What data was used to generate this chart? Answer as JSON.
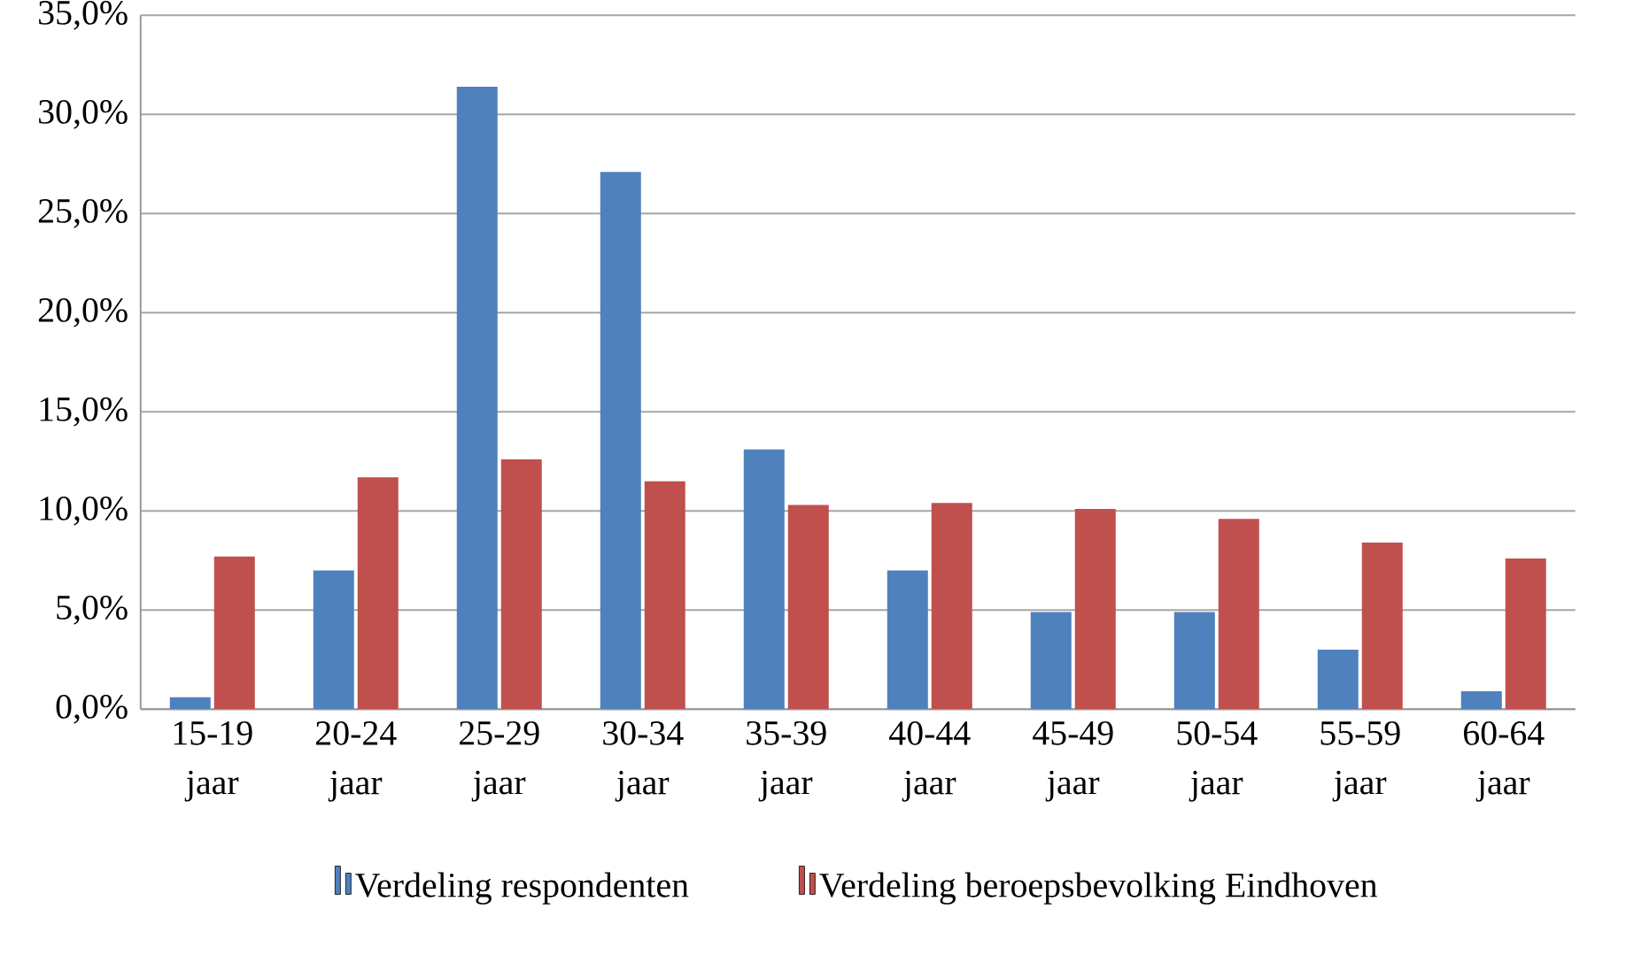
{
  "chart_data": {
    "type": "bar",
    "categories": [
      "15-19 jaar",
      "20-24 jaar",
      "25-29 jaar",
      "30-34 jaar",
      "35-39 jaar",
      "40-44 jaar",
      "45-49 jaar",
      "50-54 jaar",
      "55-59 jaar",
      "60-64 jaar"
    ],
    "series": [
      {
        "name": "Verdeling respondenten",
        "color": "#4f81bd",
        "values": [
          0.6,
          7.0,
          31.4,
          27.1,
          13.1,
          7.0,
          4.9,
          4.9,
          3.0,
          0.9
        ]
      },
      {
        "name": "Verdeling beroepsbevolking Eindhoven",
        "color": "#c0504d",
        "values": [
          7.7,
          11.7,
          12.6,
          11.5,
          10.3,
          10.4,
          10.1,
          9.6,
          8.4,
          7.6
        ]
      }
    ],
    "ylim": [
      0,
      35
    ],
    "yticks": [
      {
        "value": 0,
        "label": "0,0%"
      },
      {
        "value": 5,
        "label": "5,0%"
      },
      {
        "value": 10,
        "label": "10,0%"
      },
      {
        "value": 15,
        "label": "15,0%"
      },
      {
        "value": 20,
        "label": "20,0%"
      },
      {
        "value": 25,
        "label": "25,0%"
      },
      {
        "value": 30,
        "label": "30,0%"
      },
      {
        "value": 35,
        "label": "35,0%"
      }
    ],
    "grid": "y",
    "legend": "bottom"
  }
}
